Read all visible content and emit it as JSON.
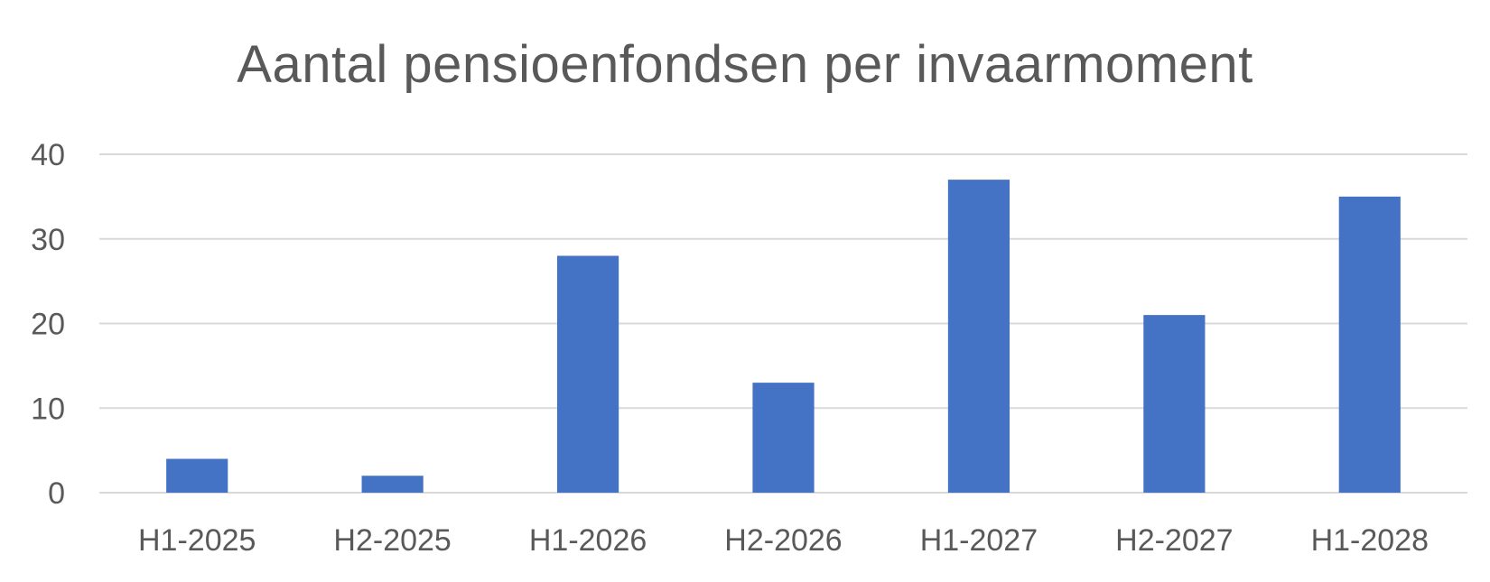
{
  "chart_data": {
    "type": "bar",
    "title": "Aantal pensioenfondsen per invaarmoment",
    "categories": [
      "H1-2025",
      "H2-2025",
      "H1-2026",
      "H2-2026",
      "H1-2027",
      "H2-2027",
      "H1-2028"
    ],
    "values": [
      4,
      2,
      28,
      13,
      37,
      21,
      35
    ],
    "xlabel": "",
    "ylabel": "",
    "ylim": [
      0,
      40
    ],
    "yticks": [
      "0",
      "10",
      "20",
      "30",
      "40"
    ],
    "grid": true,
    "legend": "none",
    "bar_color": "#4472C4"
  }
}
